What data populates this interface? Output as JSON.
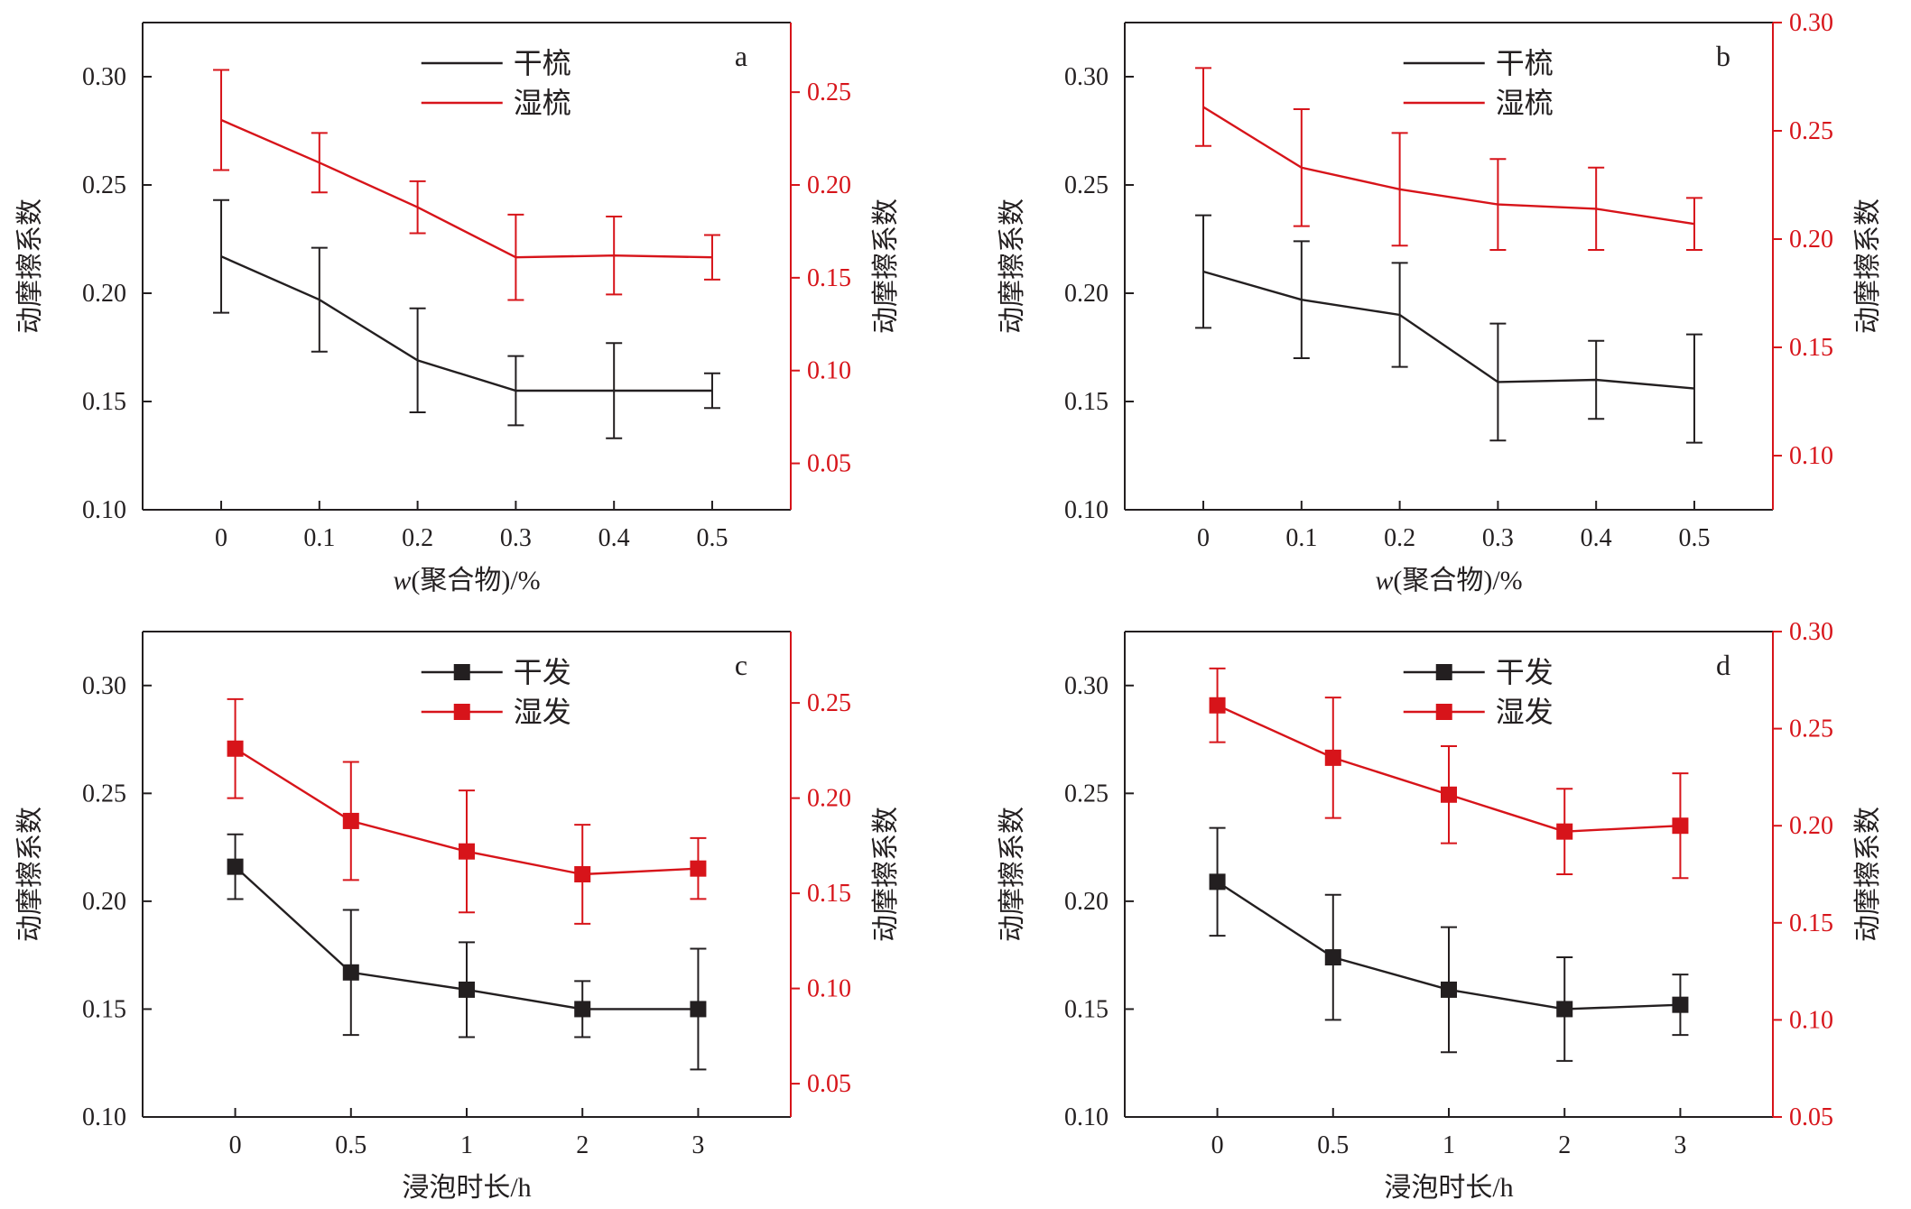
{
  "colors": {
    "black": "#231f20",
    "red": "#d7141a"
  },
  "chart_data": [
    {
      "type": "line",
      "panel_label": "a",
      "marker": "none",
      "categories": [
        "0",
        "0.1",
        "0.2",
        "0.3",
        "0.4",
        "0.5"
      ],
      "xlabel_parts": [
        "w",
        "(聚合物)/%"
      ],
      "ylabel_left": "动摩擦系数",
      "ylabel_right": "动摩擦系数",
      "ylim_left": [
        0.1,
        0.325
      ],
      "ylim_right": [
        0.025,
        0.2875
      ],
      "yticks_left": [
        "0.10",
        "0.15",
        "0.20",
        "0.25",
        "0.30"
      ],
      "yticks_right": [
        "0.05",
        "0.10",
        "0.15",
        "0.20",
        "0.25"
      ],
      "series": [
        {
          "name": "干梳",
          "axis": "left",
          "color": "#231f20",
          "values": [
            0.217,
            0.197,
            0.169,
            0.155,
            0.155,
            0.155
          ],
          "errors": [
            0.026,
            0.024,
            0.024,
            0.016,
            0.022,
            0.008
          ]
        },
        {
          "name": "湿梳",
          "axis": "right",
          "color": "#d7141a",
          "values": [
            0.235,
            0.212,
            0.188,
            0.161,
            0.162,
            0.161
          ],
          "errors": [
            0.027,
            0.016,
            0.014,
            0.023,
            0.021,
            0.012
          ]
        }
      ]
    },
    {
      "type": "line",
      "panel_label": "b",
      "marker": "none",
      "categories": [
        "0",
        "0.1",
        "0.2",
        "0.3",
        "0.4",
        "0.5"
      ],
      "xlabel_parts": [
        "w",
        "(聚合物)/%"
      ],
      "ylabel_left": "动摩擦系数",
      "ylabel_right": "动摩擦系数",
      "ylim_left": [
        0.1,
        0.325
      ],
      "ylim_right": [
        0.075,
        0.3
      ],
      "yticks_left": [
        "0.10",
        "0.15",
        "0.20",
        "0.25",
        "0.30"
      ],
      "yticks_right": [
        "0.10",
        "0.15",
        "0.20",
        "0.25",
        "0.30"
      ],
      "series": [
        {
          "name": "干梳",
          "axis": "left",
          "color": "#231f20",
          "values": [
            0.21,
            0.197,
            0.19,
            0.159,
            0.16,
            0.156
          ],
          "errors": [
            0.026,
            0.027,
            0.024,
            0.027,
            0.018,
            0.025
          ]
        },
        {
          "name": "湿梳",
          "axis": "right",
          "color": "#d7141a",
          "values": [
            0.261,
            0.233,
            0.223,
            0.216,
            0.214,
            0.207
          ],
          "errors": [
            0.018,
            0.027,
            0.026,
            0.021,
            0.019,
            0.012
          ]
        }
      ]
    },
    {
      "type": "line",
      "panel_label": "c",
      "marker": "square",
      "categories": [
        "0",
        "0.5",
        "1",
        "2",
        "3"
      ],
      "xlabel_parts": [
        "",
        "浸泡时长/h"
      ],
      "ylabel_left": "动摩擦系数",
      "ylabel_right": "动摩擦系数",
      "ylim_left": [
        0.1,
        0.325
      ],
      "ylim_right": [
        0.0325,
        0.2875
      ],
      "yticks_left": [
        "0.10",
        "0.15",
        "0.20",
        "0.25",
        "0.30"
      ],
      "yticks_right": [
        "0.05",
        "0.10",
        "0.15",
        "0.20",
        "0.25"
      ],
      "series": [
        {
          "name": "干发",
          "axis": "left",
          "color": "#231f20",
          "values": [
            0.216,
            0.167,
            0.159,
            0.15,
            0.15
          ],
          "errors": [
            0.015,
            0.029,
            0.022,
            0.013,
            0.028
          ]
        },
        {
          "name": "湿发",
          "axis": "right",
          "color": "#d7141a",
          "values": [
            0.226,
            0.188,
            0.172,
            0.16,
            0.163
          ],
          "errors": [
            0.026,
            0.031,
            0.032,
            0.026,
            0.016
          ]
        }
      ]
    },
    {
      "type": "line",
      "panel_label": "d",
      "marker": "square",
      "categories": [
        "0",
        "0.5",
        "1",
        "2",
        "3"
      ],
      "xlabel_parts": [
        "",
        "浸泡时长/h"
      ],
      "ylabel_left": "动摩擦系数",
      "ylabel_right": "动摩擦系数",
      "ylim_left": [
        0.1,
        0.325
      ],
      "ylim_right": [
        0.05,
        0.3
      ],
      "yticks_left": [
        "0.10",
        "0.15",
        "0.20",
        "0.25",
        "0.30"
      ],
      "yticks_right": [
        "0.05",
        "0.10",
        "0.15",
        "0.20",
        "0.25",
        "0.30"
      ],
      "series": [
        {
          "name": "干发",
          "axis": "left",
          "color": "#231f20",
          "values": [
            0.209,
            0.174,
            0.159,
            0.15,
            0.152
          ],
          "errors": [
            0.025,
            0.029,
            0.029,
            0.024,
            0.014
          ]
        },
        {
          "name": "湿发",
          "axis": "right",
          "color": "#d7141a",
          "values": [
            0.262,
            0.235,
            0.216,
            0.197,
            0.2
          ],
          "errors": [
            0.019,
            0.031,
            0.025,
            0.022,
            0.027
          ]
        }
      ]
    }
  ]
}
